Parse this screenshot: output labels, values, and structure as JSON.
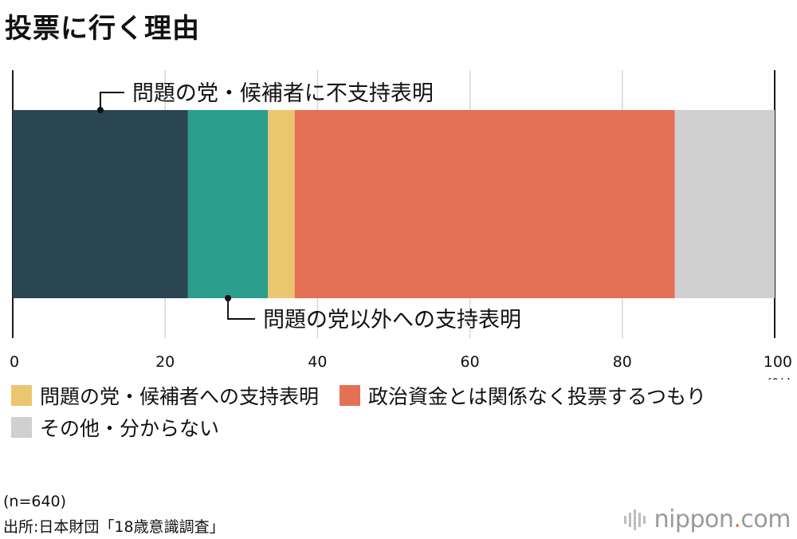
{
  "title": "投票に行く理由",
  "chart_data": {
    "type": "bar",
    "orientation": "horizontal-stacked",
    "xlim": [
      0,
      100
    ],
    "ticks": [
      0,
      20,
      40,
      60,
      80,
      100
    ],
    "unit": "(%)",
    "segments": [
      {
        "name": "問題の党・候補者に不支持表明",
        "value": 23.0,
        "color": "#2a4652"
      },
      {
        "name": "問題の党以外への支持表明",
        "value": 10.5,
        "color": "#2b9e8e"
      },
      {
        "name": "問題の党・候補者への支持表明",
        "value": 3.5,
        "color": "#eac66e"
      },
      {
        "name": "政治資金とは関係なく投票するつもり",
        "value": 49.9,
        "color": "#e47055"
      },
      {
        "name": "その他・分からない",
        "value": 13.1,
        "color": "#d0d0d0"
      }
    ],
    "callouts": [
      "問題の党・候補者に不支持表明",
      "問題の党以外への支持表明"
    ]
  },
  "legend": [
    {
      "label": "問題の党・候補者への支持表明",
      "color": "#eac66e"
    },
    {
      "label": "政治資金とは関係なく投票するつもり",
      "color": "#e47055"
    },
    {
      "label": "その他・分からない",
      "color": "#d0d0d0"
    }
  ],
  "footer": {
    "sample": "(n=640)",
    "source": "出所:日本財団「18歳意識調査」"
  },
  "logo": {
    "name": "nippon",
    "dot": ".",
    "suffix": "com"
  }
}
